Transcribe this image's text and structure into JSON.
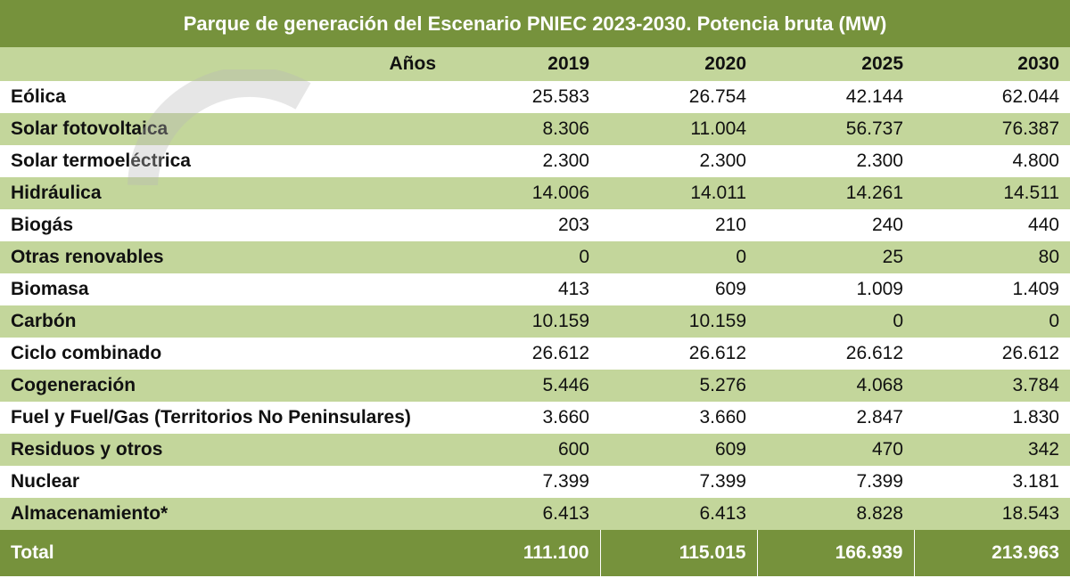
{
  "chart_data": {
    "type": "table",
    "title": "Parque de generación del Escenario PNIEC 2023-2030. Potencia bruta (MW)",
    "header_label": "Años",
    "columns": [
      "2019",
      "2020",
      "2025",
      "2030"
    ],
    "rows": [
      {
        "label": "Eólica",
        "values": [
          "25.583",
          "26.754",
          "42.144",
          "62.044"
        ]
      },
      {
        "label": "Solar fotovoltaica",
        "values": [
          "8.306",
          "11.004",
          "56.737",
          "76.387"
        ]
      },
      {
        "label": "Solar termoeléctrica",
        "values": [
          "2.300",
          "2.300",
          "2.300",
          "4.800"
        ]
      },
      {
        "label": "Hidráulica",
        "values": [
          "14.006",
          "14.011",
          "14.261",
          "14.511"
        ]
      },
      {
        "label": "Biogás",
        "values": [
          "203",
          "210",
          "240",
          "440"
        ]
      },
      {
        "label": "Otras renovables",
        "values": [
          "0",
          "0",
          "25",
          "80"
        ]
      },
      {
        "label": "Biomasa",
        "values": [
          "413",
          "609",
          "1.009",
          "1.409"
        ]
      },
      {
        "label": "Carbón",
        "values": [
          "10.159",
          "10.159",
          "0",
          "0"
        ]
      },
      {
        "label": "Ciclo combinado",
        "values": [
          "26.612",
          "26.612",
          "26.612",
          "26.612"
        ]
      },
      {
        "label": "Cogeneración",
        "values": [
          "5.446",
          "5.276",
          "4.068",
          "3.784"
        ]
      },
      {
        "label": "Fuel y Fuel/Gas (Territorios No Peninsulares)",
        "values": [
          "3.660",
          "3.660",
          "2.847",
          "1.830"
        ]
      },
      {
        "label": "Residuos y otros",
        "values": [
          "600",
          "609",
          "470",
          "342"
        ]
      },
      {
        "label": "Nuclear",
        "values": [
          "7.399",
          "7.399",
          "7.399",
          "3.181"
        ]
      },
      {
        "label": "Almacenamiento*",
        "values": [
          "6.413",
          "6.413",
          "8.828",
          "18.543"
        ]
      }
    ],
    "total": {
      "label": "Total",
      "values": [
        "111.100",
        "115.015",
        "166.939",
        "213.963"
      ]
    }
  },
  "colors": {
    "header_bg": "#76923c",
    "band_bg": "#c3d69b",
    "white": "#ffffff"
  }
}
